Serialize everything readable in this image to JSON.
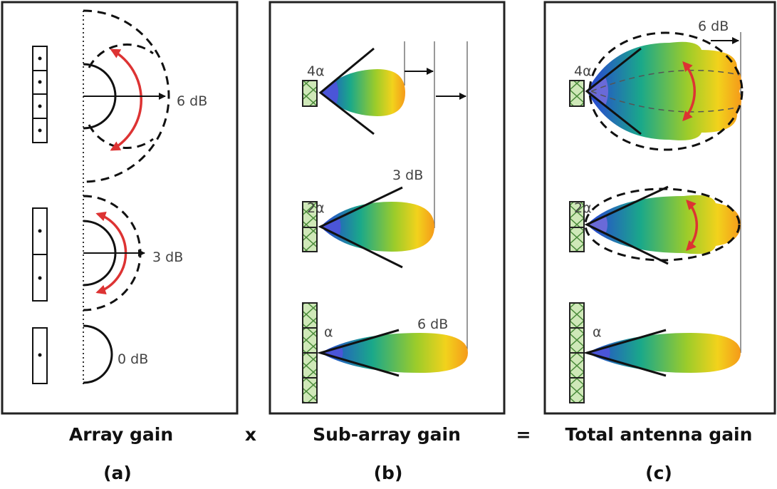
{
  "panels": [
    {
      "caption": "Array gain",
      "label": "(a)",
      "gain_labels": [
        "6 dB",
        "3 dB",
        "0 dB"
      ]
    },
    {
      "caption": "Sub-array gain",
      "label": "(b)",
      "beam_labels": [
        "4α",
        "2α",
        "α"
      ],
      "gain_labels": [
        "3 dB",
        "6 dB"
      ]
    },
    {
      "caption": "Total antenna gain",
      "label": "(c)",
      "beam_labels": [
        "4α",
        "2α",
        "α"
      ],
      "gain_labels": [
        "6 dB"
      ]
    }
  ],
  "operators": [
    "x",
    "="
  ]
}
